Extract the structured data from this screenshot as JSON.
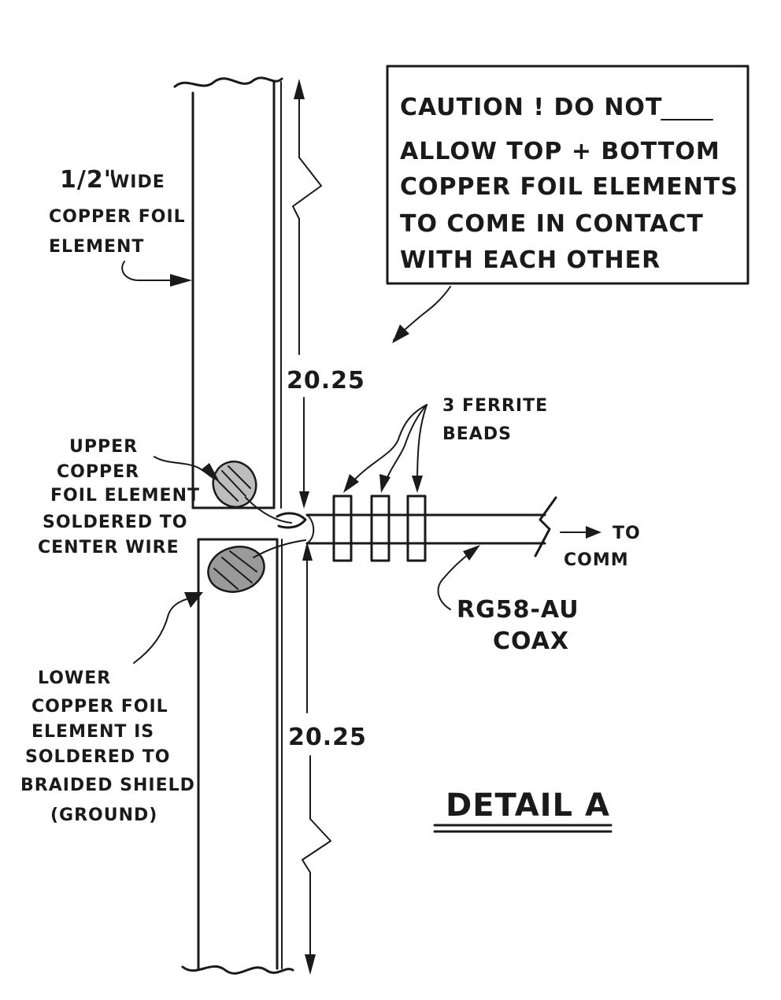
{
  "caution_box": {
    "lines": [
      "CAUTION ! DO NOT",
      "ALLOW TOP + BOTTOM",
      "COPPER FOIL ELEMENTS",
      "TO COME IN CONTACT",
      "WITH EACH OTHER"
    ]
  },
  "labels": {
    "foil_width": {
      "fraction": "1/2\"",
      "line1": "WIDE",
      "line2": "COPPER FOIL",
      "line3": "ELEMENT"
    },
    "upper_solder": [
      "UPPER",
      "COPPER",
      "FOIL ELEMENT",
      "SOLDERED TO",
      "CENTER WIRE"
    ],
    "lower_solder": [
      "LOWER",
      "COPPER FOIL",
      "ELEMENT IS",
      "SOLDERED TO",
      "BRAIDED SHIELD",
      "(GROUND)"
    ],
    "ferrite": [
      "3 FERRITE",
      "BEADS"
    ],
    "to_comm": [
      "TO",
      "COMM"
    ],
    "coax": [
      "RG58-AU",
      "COAX"
    ],
    "detail_title": "DETAIL A"
  },
  "dimensions": {
    "upper_length": "20.25",
    "lower_length": "20.25"
  }
}
